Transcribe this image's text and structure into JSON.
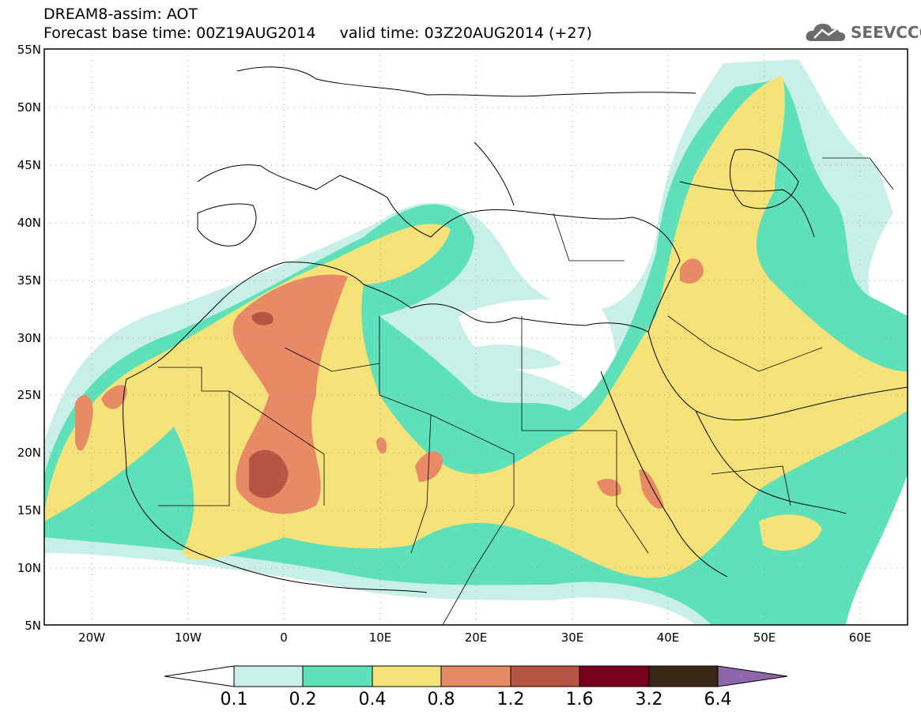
{
  "header": {
    "line1": "DREAM8-assim: AOT",
    "line2": "Forecast base time: 00Z19AUG2014     valid time: 03Z20AUG2014 (+27)"
  },
  "logo": {
    "text": "SEEVCCC",
    "icon": "cloud-icon"
  },
  "map": {
    "lat_labels": [
      "55N",
      "50N",
      "45N",
      "40N",
      "35N",
      "30N",
      "25N",
      "20N",
      "15N",
      "10N",
      "5N"
    ],
    "lon_labels": [
      "20W",
      "10W",
      "0",
      "10E",
      "20E",
      "30E",
      "40E",
      "50E",
      "60E"
    ],
    "lon_range": [
      -25,
      65
    ],
    "lat_range": [
      5,
      55
    ],
    "grid": "dotted"
  },
  "colorbar": {
    "labels": [
      "0.1",
      "0.2",
      "0.4",
      "0.8",
      "1.2",
      "1.6",
      "3.2",
      "6.4"
    ],
    "colors": [
      "#c8f0e8",
      "#5ee0b8",
      "#f5e37a",
      "#e88a66",
      "#b85444",
      "#7a0022",
      "#3a2614",
      "#8e66aa"
    ],
    "under_color": "#ffffff"
  }
}
